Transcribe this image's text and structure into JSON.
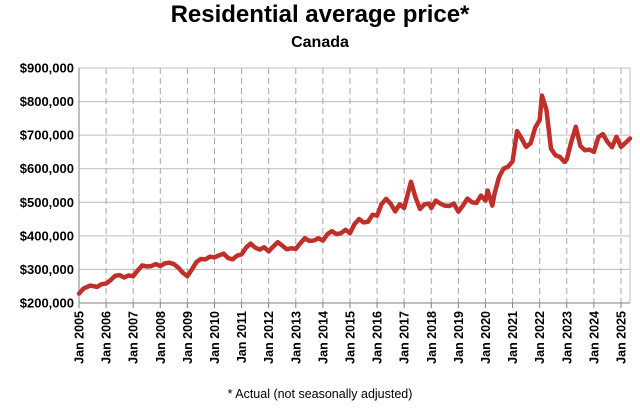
{
  "chart_data": {
    "type": "line",
    "title": "Residential average price*",
    "subtitle": "Canada",
    "footnote": "* Actual (not seasonally adjusted)",
    "xlabel": "",
    "ylabel": "",
    "ylim": [
      200000,
      900000
    ],
    "xlim": [
      "2005-01",
      "2025-05"
    ],
    "grid": true,
    "line_color": "#c0302b",
    "yticks": [
      {
        "value": 200000,
        "label": "$200,000"
      },
      {
        "value": 300000,
        "label": "$300,000"
      },
      {
        "value": 400000,
        "label": "$400,000"
      },
      {
        "value": 500000,
        "label": "$500,000"
      },
      {
        "value": 600000,
        "label": "$600,000"
      },
      {
        "value": 700000,
        "label": "$700,000"
      },
      {
        "value": 800000,
        "label": "$800,000"
      },
      {
        "value": 900000,
        "label": "$900,000"
      }
    ],
    "xticks": [
      {
        "value": "2005-01",
        "label": "Jan 2005"
      },
      {
        "value": "2006-01",
        "label": "Jan 2006"
      },
      {
        "value": "2007-01",
        "label": "Jan 2007"
      },
      {
        "value": "2008-01",
        "label": "Jan 2008"
      },
      {
        "value": "2009-01",
        "label": "Jan 2009"
      },
      {
        "value": "2010-01",
        "label": "Jan 2010"
      },
      {
        "value": "2011-01",
        "label": "Jan 2011"
      },
      {
        "value": "2012-01",
        "label": "Jan 2012"
      },
      {
        "value": "2013-01",
        "label": "Jan 2013"
      },
      {
        "value": "2014-01",
        "label": "Jan 2014"
      },
      {
        "value": "2015-01",
        "label": "Jan 2015"
      },
      {
        "value": "2016-01",
        "label": "Jan 2016"
      },
      {
        "value": "2017-01",
        "label": "Jan 2017"
      },
      {
        "value": "2018-01",
        "label": "Jan 2018"
      },
      {
        "value": "2019-01",
        "label": "Jan 2019"
      },
      {
        "value": "2020-01",
        "label": "Jan 2020"
      },
      {
        "value": "2021-01",
        "label": "Jan 2021"
      },
      {
        "value": "2022-01",
        "label": "Jan 2022"
      },
      {
        "value": "2023-01",
        "label": "Jan 2023"
      },
      {
        "value": "2024-01",
        "label": "Jan 2024"
      },
      {
        "value": "2025-01",
        "label": "Jan 2025"
      }
    ],
    "series": [
      {
        "points": [
          [
            "2005-01",
            228000
          ],
          [
            "2005-03",
            243000
          ],
          [
            "2005-06",
            252000
          ],
          [
            "2005-09",
            248000
          ],
          [
            "2005-11",
            256000
          ],
          [
            "2006-01",
            258000
          ],
          [
            "2006-03",
            268000
          ],
          [
            "2006-05",
            281000
          ],
          [
            "2006-07",
            283000
          ],
          [
            "2006-09",
            276000
          ],
          [
            "2006-11",
            282000
          ],
          [
            "2007-01",
            280000
          ],
          [
            "2007-03",
            297000
          ],
          [
            "2007-05",
            312000
          ],
          [
            "2007-07",
            309000
          ],
          [
            "2007-09",
            310000
          ],
          [
            "2007-11",
            316000
          ],
          [
            "2008-01",
            310000
          ],
          [
            "2008-03",
            318000
          ],
          [
            "2008-05",
            320000
          ],
          [
            "2008-07",
            316000
          ],
          [
            "2008-09",
            305000
          ],
          [
            "2008-11",
            290000
          ],
          [
            "2009-01",
            280000
          ],
          [
            "2009-03",
            300000
          ],
          [
            "2009-05",
            322000
          ],
          [
            "2009-07",
            331000
          ],
          [
            "2009-09",
            330000
          ],
          [
            "2009-11",
            338000
          ],
          [
            "2010-01",
            336000
          ],
          [
            "2010-03",
            342000
          ],
          [
            "2010-05",
            347000
          ],
          [
            "2010-07",
            334000
          ],
          [
            "2010-09",
            330000
          ],
          [
            "2010-11",
            341000
          ],
          [
            "2011-01",
            345000
          ],
          [
            "2011-03",
            365000
          ],
          [
            "2011-05",
            377000
          ],
          [
            "2011-07",
            365000
          ],
          [
            "2011-09",
            359000
          ],
          [
            "2011-11",
            366000
          ],
          [
            "2012-01",
            354000
          ],
          [
            "2012-03",
            368000
          ],
          [
            "2012-05",
            381000
          ],
          [
            "2012-07",
            371000
          ],
          [
            "2012-09",
            360000
          ],
          [
            "2012-11",
            363000
          ],
          [
            "2013-01",
            361000
          ],
          [
            "2013-03",
            378000
          ],
          [
            "2013-05",
            393000
          ],
          [
            "2013-07",
            385000
          ],
          [
            "2013-09",
            386000
          ],
          [
            "2013-11",
            393000
          ],
          [
            "2014-01",
            386000
          ],
          [
            "2014-03",
            405000
          ],
          [
            "2014-05",
            414000
          ],
          [
            "2014-07",
            405000
          ],
          [
            "2014-09",
            408000
          ],
          [
            "2014-11",
            418000
          ],
          [
            "2015-01",
            408000
          ],
          [
            "2015-03",
            435000
          ],
          [
            "2015-05",
            450000
          ],
          [
            "2015-07",
            440000
          ],
          [
            "2015-09",
            442000
          ],
          [
            "2015-11",
            463000
          ],
          [
            "2016-01",
            460000
          ],
          [
            "2016-03",
            495000
          ],
          [
            "2016-05",
            510000
          ],
          [
            "2016-07",
            496000
          ],
          [
            "2016-09",
            473000
          ],
          [
            "2016-11",
            494000
          ],
          [
            "2017-01",
            483000
          ],
          [
            "2017-03",
            535000
          ],
          [
            "2017-04",
            561000
          ],
          [
            "2017-06",
            515000
          ],
          [
            "2017-08",
            480000
          ],
          [
            "2017-10",
            494000
          ],
          [
            "2017-12",
            496000
          ],
          [
            "2018-01",
            483000
          ],
          [
            "2018-03",
            505000
          ],
          [
            "2018-05",
            496000
          ],
          [
            "2018-07",
            490000
          ],
          [
            "2018-09",
            489000
          ],
          [
            "2018-11",
            496000
          ],
          [
            "2019-01",
            472000
          ],
          [
            "2019-03",
            490000
          ],
          [
            "2019-05",
            511000
          ],
          [
            "2019-07",
            500000
          ],
          [
            "2019-09",
            498000
          ],
          [
            "2019-11",
            520000
          ],
          [
            "2020-01",
            505000
          ],
          [
            "2020-02",
            535000
          ],
          [
            "2020-04",
            490000
          ],
          [
            "2020-05",
            525000
          ],
          [
            "2020-07",
            575000
          ],
          [
            "2020-09",
            600000
          ],
          [
            "2020-11",
            606000
          ],
          [
            "2021-01",
            622000
          ],
          [
            "2021-03",
            712000
          ],
          [
            "2021-05",
            690000
          ],
          [
            "2021-07",
            665000
          ],
          [
            "2021-09",
            676000
          ],
          [
            "2021-11",
            722000
          ],
          [
            "2022-01",
            745000
          ],
          [
            "2022-02",
            818000
          ],
          [
            "2022-04",
            775000
          ],
          [
            "2022-06",
            660000
          ],
          [
            "2022-08",
            640000
          ],
          [
            "2022-10",
            635000
          ],
          [
            "2022-12",
            620000
          ],
          [
            "2023-01",
            628000
          ],
          [
            "2023-03",
            680000
          ],
          [
            "2023-05",
            725000
          ],
          [
            "2023-07",
            668000
          ],
          [
            "2023-09",
            655000
          ],
          [
            "2023-11",
            657000
          ],
          [
            "2024-01",
            650000
          ],
          [
            "2024-03",
            694000
          ],
          [
            "2024-05",
            703000
          ],
          [
            "2024-07",
            680000
          ],
          [
            "2024-09",
            664000
          ],
          [
            "2024-11",
            695000
          ],
          [
            "2025-01",
            665000
          ],
          [
            "2025-03",
            677000
          ],
          [
            "2025-05",
            690000
          ]
        ]
      }
    ]
  }
}
